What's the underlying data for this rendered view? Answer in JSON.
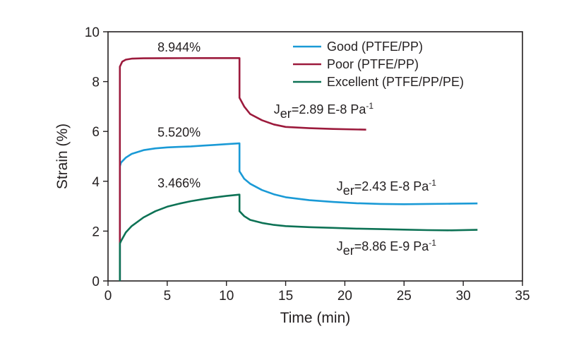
{
  "chart_data": {
    "type": "line",
    "xlabel": "Time (min)",
    "ylabel": "Strain (%)",
    "xlim": [
      0,
      35
    ],
    "ylim": [
      0,
      10
    ],
    "xticks": [
      "0",
      "5",
      "10",
      "15",
      "20",
      "25",
      "30",
      "35"
    ],
    "yticks": [
      "0",
      "2",
      "4",
      "6",
      "8",
      "10"
    ],
    "grid": false,
    "legend_position": "top-right",
    "series": [
      {
        "name": "Good (PTFE/PP)",
        "color": "#1a9ad6",
        "points": [
          [
            1.0,
            0.0
          ],
          [
            1.0,
            4.6
          ],
          [
            1.1,
            4.75
          ],
          [
            1.5,
            4.95
          ],
          [
            2,
            5.1
          ],
          [
            3,
            5.25
          ],
          [
            4,
            5.32
          ],
          [
            5,
            5.36
          ],
          [
            6,
            5.38
          ],
          [
            7,
            5.4
          ],
          [
            8,
            5.43
          ],
          [
            9,
            5.46
          ],
          [
            10,
            5.49
          ],
          [
            11.1,
            5.52
          ],
          [
            11.1,
            4.4
          ],
          [
            11.5,
            4.1
          ],
          [
            12,
            3.9
          ],
          [
            13,
            3.65
          ],
          [
            14,
            3.48
          ],
          [
            15,
            3.36
          ],
          [
            17,
            3.24
          ],
          [
            19,
            3.17
          ],
          [
            21,
            3.12
          ],
          [
            23,
            3.09
          ],
          [
            25,
            3.08
          ],
          [
            27,
            3.09
          ],
          [
            29,
            3.1
          ],
          [
            31.2,
            3.11
          ]
        ]
      },
      {
        "name": "Poor (PTFE/PP)",
        "color": "#9c1a3c",
        "points": [
          [
            1.0,
            0.0
          ],
          [
            1.0,
            8.6
          ],
          [
            1.2,
            8.8
          ],
          [
            1.5,
            8.88
          ],
          [
            2,
            8.92
          ],
          [
            3,
            8.935
          ],
          [
            5,
            8.94
          ],
          [
            8,
            8.944
          ],
          [
            11.1,
            8.944
          ],
          [
            11.1,
            7.35
          ],
          [
            11.5,
            7.0
          ],
          [
            12,
            6.7
          ],
          [
            13,
            6.45
          ],
          [
            14,
            6.28
          ],
          [
            15,
            6.18
          ],
          [
            17,
            6.13
          ],
          [
            19,
            6.1
          ],
          [
            21.8,
            6.07
          ]
        ]
      },
      {
        "name": "Excellent (PTFE/PP/PE)",
        "color": "#0d7255",
        "points": [
          [
            1.0,
            0.0
          ],
          [
            1.0,
            1.5
          ],
          [
            1.1,
            1.6
          ],
          [
            1.5,
            1.95
          ],
          [
            2,
            2.2
          ],
          [
            3,
            2.55
          ],
          [
            4,
            2.8
          ],
          [
            5,
            2.98
          ],
          [
            6,
            3.1
          ],
          [
            7,
            3.2
          ],
          [
            8,
            3.28
          ],
          [
            9,
            3.35
          ],
          [
            10,
            3.41
          ],
          [
            11.1,
            3.466
          ],
          [
            11.1,
            2.8
          ],
          [
            11.5,
            2.6
          ],
          [
            12,
            2.45
          ],
          [
            13,
            2.33
          ],
          [
            14,
            2.25
          ],
          [
            15,
            2.2
          ],
          [
            17,
            2.16
          ],
          [
            19,
            2.13
          ],
          [
            21,
            2.1
          ],
          [
            23,
            2.08
          ],
          [
            25,
            2.06
          ],
          [
            27,
            2.04
          ],
          [
            29,
            2.03
          ],
          [
            31.2,
            2.05
          ]
        ]
      }
    ],
    "annotations": [
      {
        "name": "poor-peak",
        "text": "8.944%",
        "x": 6.0,
        "y": 9.2
      },
      {
        "name": "good-peak",
        "text": "5.520%",
        "x": 6.0,
        "y": 5.8
      },
      {
        "name": "excellent-peak",
        "text": "3.466%",
        "x": 6.0,
        "y": 3.75
      }
    ],
    "jer_labels": [
      {
        "name": "poor-jer",
        "prefix": "J",
        "sub": "er",
        "value": "=2.89 E-8 Pa",
        "sup": "-1",
        "x": 14.0,
        "y": 6.72
      },
      {
        "name": "good-jer",
        "prefix": "J",
        "sub": "er",
        "value": "=2.43 E-8 Pa",
        "sup": "-1",
        "x": 19.3,
        "y": 3.62
      },
      {
        "name": "excellent-jer",
        "prefix": "J",
        "sub": "er",
        "value": "=8.86 E-9 Pa",
        "sup": "-1",
        "x": 19.3,
        "y": 1.22
      }
    ]
  }
}
